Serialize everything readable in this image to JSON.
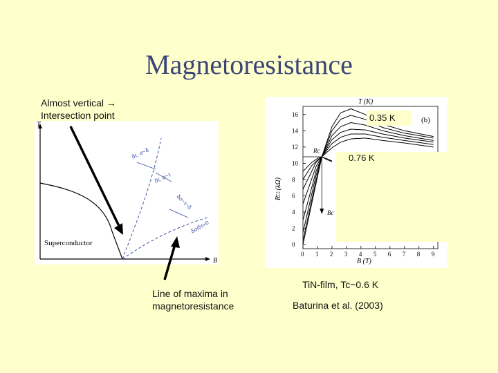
{
  "slide": {
    "title": "Magnetoresistance",
    "note_left_line1": "Almost vertical →",
    "note_left_line2": "Intersection point",
    "caption_left_line1": "Line of maxima in",
    "caption_left_line2": "magnetoresistance",
    "caption_right_line1": "TiN-film, Tc~0.6 K",
    "caption_right_line2": "Baturina et al. (2003)",
    "label_035": "0.35 K",
    "label_076": "0.76 K"
  },
  "phase_diagram": {
    "y_axis_label": "T",
    "x_axis_label": "B",
    "region_label": "Superconductor",
    "annot_1": "δτ, σ~δ",
    "annot_2": "δτ, σ~τ",
    "annot_3": "δσ~τ~δ",
    "annot_4": "δσ/δτ>0"
  },
  "chart_data": {
    "type": "line",
    "ylabel": "R□ (kΩ)",
    "xlabel": "B (T)",
    "panel_label": "(b)",
    "top_label": "T (K)",
    "annotation_rc": "Rc",
    "annotation_bc": "Bc",
    "x_ticks": [
      0,
      1,
      2,
      3,
      4,
      5,
      6,
      7,
      8,
      9
    ],
    "y_ticks": [
      0,
      2,
      4,
      6,
      8,
      10,
      12,
      14,
      16
    ],
    "xlim": [
      0,
      9.3
    ],
    "ylim": [
      -0.5,
      17
    ],
    "crossing": {
      "x": 1.3,
      "y": 10.8
    },
    "curves_above": [
      {
        "x": [
          0,
          0.9,
          1.3,
          2.0,
          2.6,
          3.3,
          4.3,
          5.5,
          7.0,
          9.0
        ],
        "y": [
          0,
          7.5,
          10.8,
          14.5,
          16.2,
          16.7,
          16.0,
          14.8,
          14.0,
          13.3
        ]
      },
      {
        "x": [
          0,
          0.9,
          1.3,
          2.0,
          2.6,
          3.3,
          4.3,
          5.5,
          7.0,
          9.0
        ],
        "y": [
          0.5,
          7.9,
          10.8,
          14.0,
          15.4,
          15.9,
          15.4,
          14.4,
          13.7,
          13.1
        ]
      },
      {
        "x": [
          0,
          0.9,
          1.3,
          2.0,
          2.6,
          3.3,
          4.3,
          5.5,
          7.0,
          9.0
        ],
        "y": [
          1.5,
          8.5,
          10.8,
          13.4,
          14.5,
          15.0,
          14.7,
          14.0,
          13.4,
          12.8
        ]
      },
      {
        "x": [
          0,
          0.9,
          1.3,
          2.0,
          2.6,
          3.3,
          4.3,
          5.5,
          7.0,
          9.0
        ],
        "y": [
          3.0,
          9.0,
          10.8,
          12.9,
          13.8,
          14.2,
          14.1,
          13.6,
          13.1,
          12.6
        ]
      },
      {
        "x": [
          0,
          0.9,
          1.3,
          2.0,
          2.6,
          3.3,
          4.3,
          5.5,
          7.0,
          9.0
        ],
        "y": [
          5.0,
          9.6,
          10.8,
          12.4,
          13.2,
          13.6,
          13.6,
          13.2,
          12.8,
          12.3
        ]
      },
      {
        "x": [
          0,
          0.9,
          1.3,
          2.0,
          2.6,
          3.3,
          4.3,
          5.5,
          7.0,
          9.0
        ],
        "y": [
          6.8,
          10.1,
          10.8,
          11.9,
          12.6,
          13.0,
          13.1,
          12.8,
          12.5,
          12.0
        ]
      }
    ],
    "curves_below": [
      {
        "x": [
          0,
          0.6,
          1.0,
          1.3,
          1.6,
          2.0
        ],
        "y": [
          8.0,
          9.7,
          10.4,
          10.8,
          10.5,
          10.2
        ]
      },
      {
        "x": [
          0,
          0.6,
          1.0,
          1.3,
          1.6,
          2.0
        ],
        "y": [
          9.0,
          10.1,
          10.6,
          10.8,
          10.6,
          10.3
        ]
      }
    ]
  }
}
